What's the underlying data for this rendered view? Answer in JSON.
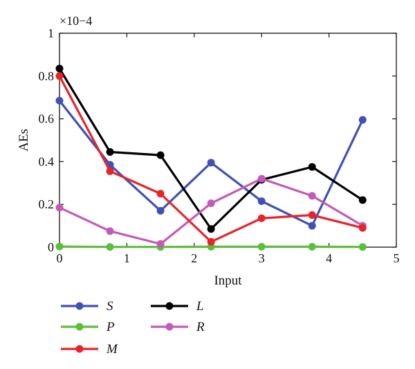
{
  "chart_data": {
    "type": "line",
    "title": "",
    "xlabel": "Input",
    "ylabel": "AEs",
    "y_multiplier": "×10−4",
    "xlim": [
      0,
      5
    ],
    "ylim": [
      0,
      1
    ],
    "xticks": [
      0,
      1,
      2,
      3,
      4,
      5
    ],
    "yticks": [
      0,
      0.2,
      0.4,
      0.6,
      0.8,
      1
    ],
    "ytick_labels": [
      "0",
      "0.2",
      "0.4",
      "0.6",
      "0.8",
      "1"
    ],
    "grid": false,
    "legend_placement": "below",
    "series": [
      {
        "name": "S",
        "color": "#3f51b5",
        "x": [
          0,
          0.75,
          1.5,
          2.25,
          3,
          3.75,
          4.5
        ],
        "y": [
          0.685,
          0.385,
          0.17,
          0.395,
          0.215,
          0.1,
          0.595
        ]
      },
      {
        "name": "L",
        "color": "#000000",
        "x": [
          0,
          0.75,
          1.5,
          2.25,
          3,
          3.75,
          4.5
        ],
        "y": [
          0.835,
          0.445,
          0.43,
          0.085,
          0.315,
          0.375,
          0.22
        ]
      },
      {
        "name": "P",
        "color": "#5cbf3a",
        "x": [
          0,
          0.75,
          1.5,
          2.25,
          3,
          3.75,
          4.5
        ],
        "y": [
          0.003,
          0.001,
          0.001,
          0.002,
          0.002,
          0.002,
          0.001
        ]
      },
      {
        "name": "R",
        "color": "#c35ab8",
        "x": [
          0,
          0.75,
          1.5,
          2.25,
          3,
          3.75,
          4.5
        ],
        "y": [
          0.185,
          0.075,
          0.015,
          0.205,
          0.32,
          0.24,
          0.1
        ]
      },
      {
        "name": "M",
        "color": "#e8232a",
        "x": [
          0,
          0.75,
          1.5,
          2.25,
          3,
          3.75,
          4.5
        ],
        "y": [
          0.8,
          0.355,
          0.25,
          0.025,
          0.135,
          0.15,
          0.09
        ]
      }
    ]
  }
}
